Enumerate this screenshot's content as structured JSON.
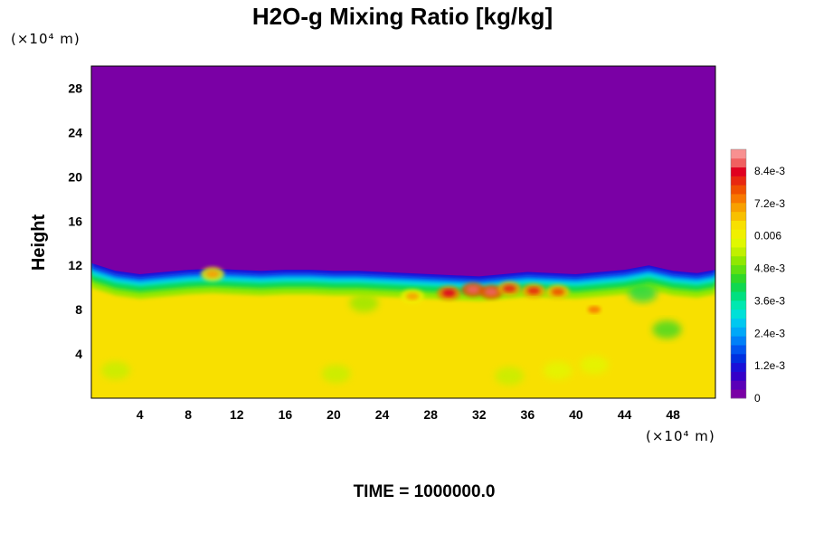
{
  "chart_data": {
    "type": "heatmap",
    "title": "H2O-g Mixing Ratio [kg/kg]",
    "ylabel": "Height",
    "xlabel": "",
    "x_unit": "(×10⁴ m)",
    "y_unit": "(×10⁴ m)",
    "footer": "TIME = 1000000.0",
    "xlim": [
      0,
      51.5
    ],
    "ylim": [
      0,
      30
    ],
    "x_ticks": [
      4,
      8,
      12,
      16,
      20,
      24,
      28,
      32,
      36,
      40,
      44,
      48
    ],
    "y_ticks": [
      4,
      8,
      12,
      16,
      20,
      24,
      28
    ],
    "field": {
      "upper_value": 0,
      "lower_value": 0.0063,
      "boundary_height_profile": {
        "x": [
          0,
          2,
          4,
          6,
          8,
          10,
          12,
          14,
          16,
          18,
          20,
          22,
          24,
          26,
          28,
          30,
          32,
          34,
          36,
          38,
          40,
          42,
          44,
          46,
          48,
          50,
          51.5
        ],
        "y": [
          12.2,
          11.5,
          11.2,
          11.4,
          11.6,
          11.7,
          11.6,
          11.5,
          11.6,
          11.6,
          11.5,
          11.5,
          11.4,
          11.3,
          11.2,
          11.1,
          11.0,
          11.2,
          11.4,
          11.3,
          11.2,
          11.4,
          11.6,
          12.0,
          11.5,
          11.3,
          11.6
        ]
      },
      "moist_patches": [
        {
          "x": 29.5,
          "y": 9.5,
          "value": 0.0085
        },
        {
          "x": 31.5,
          "y": 9.8,
          "value": 0.0088
        },
        {
          "x": 33.0,
          "y": 9.6,
          "value": 0.0087
        },
        {
          "x": 34.5,
          "y": 9.9,
          "value": 0.0082
        },
        {
          "x": 36.5,
          "y": 9.7,
          "value": 0.008
        },
        {
          "x": 38.5,
          "y": 9.6,
          "value": 0.0078
        },
        {
          "x": 41.5,
          "y": 8.0,
          "value": 0.0075
        },
        {
          "x": 26.5,
          "y": 9.2,
          "value": 0.0072
        },
        {
          "x": 10.0,
          "y": 11.2,
          "value": 0.0072
        }
      ],
      "dry_patches": [
        {
          "x": 22.5,
          "y": 8.6,
          "value": 0.0052
        },
        {
          "x": 20.2,
          "y": 2.2,
          "value": 0.0055
        },
        {
          "x": 34.5,
          "y": 2.0,
          "value": 0.0055
        },
        {
          "x": 41.5,
          "y": 3.0,
          "value": 0.0056
        },
        {
          "x": 47.5,
          "y": 6.2,
          "value": 0.0045
        },
        {
          "x": 45.5,
          "y": 9.5,
          "value": 0.004
        },
        {
          "x": 38.5,
          "y": 2.5,
          "value": 0.0056
        },
        {
          "x": 2.0,
          "y": 2.5,
          "value": 0.0055
        }
      ]
    },
    "colorbar": {
      "vmin": 0,
      "vmax": 0.0092,
      "labels": [
        {
          "text": "0",
          "value": 0
        },
        {
          "text": "1.2e-3",
          "value": 0.0012
        },
        {
          "text": "2.4e-3",
          "value": 0.0024
        },
        {
          "text": "3.6e-3",
          "value": 0.0036
        },
        {
          "text": "4.8e-3",
          "value": 0.0048
        },
        {
          "text": "0.006",
          "value": 0.006
        },
        {
          "text": "7.2e-3",
          "value": 0.0072
        },
        {
          "text": "8.4e-3",
          "value": 0.0084
        }
      ],
      "colors": [
        "#7a00a5",
        "#5a00b8",
        "#3500c8",
        "#1a10d8",
        "#0030e0",
        "#0055f0",
        "#0080f8",
        "#00a8f8",
        "#00c8f0",
        "#00e0d8",
        "#00e8b0",
        "#00e080",
        "#10d850",
        "#30d828",
        "#60e010",
        "#90e800",
        "#c0f000",
        "#e0f800",
        "#f0f000",
        "#f8e000",
        "#f8c000",
        "#f8a000",
        "#f87800",
        "#f05000",
        "#e82810",
        "#e00020",
        "#f06060",
        "#f89090"
      ]
    }
  }
}
